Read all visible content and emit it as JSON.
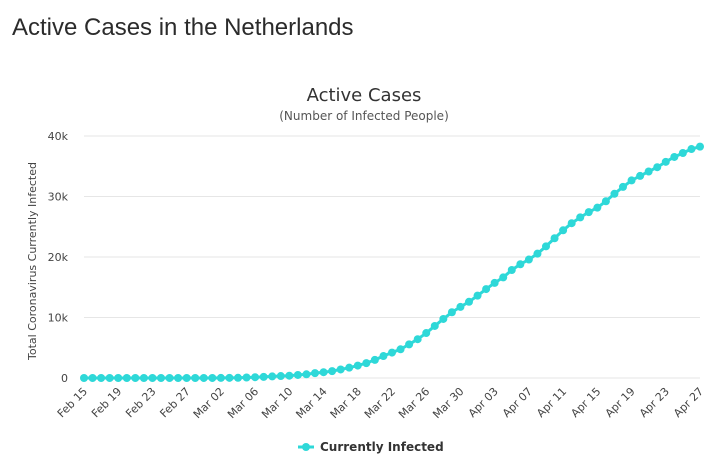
{
  "page": {
    "title": "Active Cases in the Netherlands"
  },
  "chart_data": {
    "type": "line",
    "title": "Active Cases",
    "subtitle": "(Number of Infected People)",
    "xlabel": "",
    "ylabel": "Total Coronavirus Currently Infected",
    "ylim": [
      0,
      40000
    ],
    "yticks": [
      0,
      10000,
      20000,
      30000,
      40000
    ],
    "ytick_labels": [
      "0",
      "10k",
      "20k",
      "30k",
      "40k"
    ],
    "x_tick_labels": [
      "Feb 15",
      "Feb 19",
      "Feb 23",
      "Feb 27",
      "Mar 02",
      "Mar 06",
      "Mar 10",
      "Mar 14",
      "Mar 18",
      "Mar 22",
      "Mar 26",
      "Mar 30",
      "Apr 03",
      "Apr 07",
      "Apr 11",
      "Apr 15",
      "Apr 19",
      "Apr 23",
      "Apr 27"
    ],
    "grid": true,
    "legend_position": "bottom-center",
    "series_color": "#2ed8d8",
    "series": [
      {
        "name": "Currently Infected",
        "x": [
          "Feb 15",
          "Feb 16",
          "Feb 17",
          "Feb 18",
          "Feb 19",
          "Feb 20",
          "Feb 21",
          "Feb 22",
          "Feb 23",
          "Feb 24",
          "Feb 25",
          "Feb 26",
          "Feb 27",
          "Feb 28",
          "Feb 29",
          "Mar 01",
          "Mar 02",
          "Mar 03",
          "Mar 04",
          "Mar 05",
          "Mar 06",
          "Mar 07",
          "Mar 08",
          "Mar 09",
          "Mar 10",
          "Mar 11",
          "Mar 12",
          "Mar 13",
          "Mar 14",
          "Mar 15",
          "Mar 16",
          "Mar 17",
          "Mar 18",
          "Mar 19",
          "Mar 20",
          "Mar 21",
          "Mar 22",
          "Mar 23",
          "Mar 24",
          "Mar 25",
          "Mar 26",
          "Mar 27",
          "Mar 28",
          "Mar 29",
          "Mar 30",
          "Mar 31",
          "Apr 01",
          "Apr 02",
          "Apr 03",
          "Apr 04",
          "Apr 05",
          "Apr 06",
          "Apr 07",
          "Apr 08",
          "Apr 09",
          "Apr 10",
          "Apr 11",
          "Apr 12",
          "Apr 13",
          "Apr 14",
          "Apr 15",
          "Apr 16",
          "Apr 17",
          "Apr 18",
          "Apr 19",
          "Apr 20",
          "Apr 21",
          "Apr 22",
          "Apr 23",
          "Apr 24",
          "Apr 25",
          "Apr 26",
          "Apr 27"
        ],
        "values": [
          0,
          0,
          0,
          0,
          0,
          0,
          0,
          0,
          0,
          0,
          0,
          0,
          0,
          1,
          6,
          10,
          18,
          24,
          38,
          82,
          128,
          188,
          265,
          321,
          382,
          503,
          614,
          804,
          959,
          1135,
          1413,
          1705,
          2051,
          2460,
          2994,
          3631,
          4204,
          4749,
          5560,
          6412,
          7431,
          8603,
          9762,
          10866,
          11750,
          12595,
          13614,
          14697,
          15723,
          16627,
          17851,
          18803,
          19580,
          20549,
          21762,
          23097,
          24413,
          25587,
          26551,
          27419,
          28153,
          29214,
          30449,
          31589,
          32655,
          33405,
          34134,
          34842,
          35729,
          36535,
          37190,
          37845,
          38245
        ]
      }
    ],
    "legend": [
      {
        "label": "Currently Infected",
        "icon": "line-with-dot"
      }
    ]
  }
}
